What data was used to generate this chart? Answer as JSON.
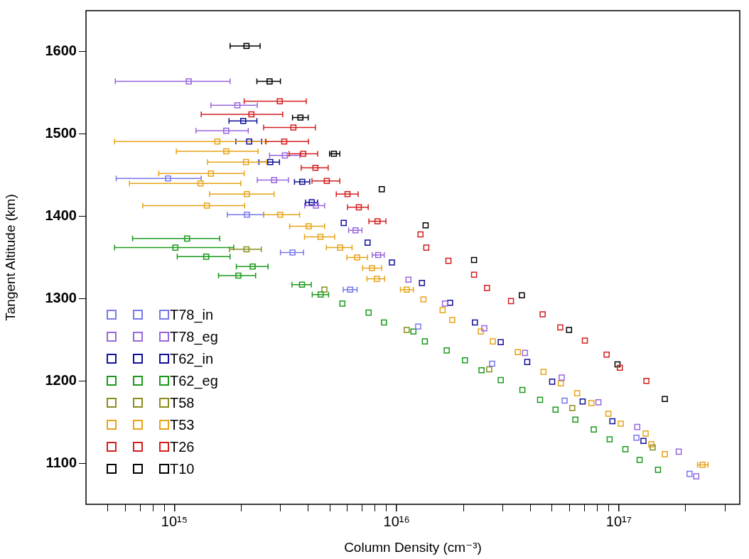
{
  "chart_data": {
    "type": "scatter",
    "xlabel": "Column Density (cm⁻³)",
    "ylabel": "Tangent Altitude (km)",
    "log": "x",
    "grid": false,
    "legend": "bottom left",
    "marker": "square",
    "xlim": [
      400000000000000.0,
      3.5e+17
    ],
    "ylim": [
      1050,
      1650
    ],
    "xticks": [
      {
        "value": 500000000000000.0,
        "label": null
      },
      {
        "value": 600000000000000.0,
        "label": null
      },
      {
        "value": 700000000000000.0,
        "label": null
      },
      {
        "value": 800000000000000.0,
        "label": null
      },
      {
        "value": 900000000000000.0,
        "label": null
      },
      {
        "value": 1000000000000000.0,
        "label": "10¹⁵"
      },
      {
        "value": 2000000000000000.0,
        "label": null
      },
      {
        "value": 3000000000000000.0,
        "label": null
      },
      {
        "value": 4000000000000000.0,
        "label": null
      },
      {
        "value": 5000000000000000.0,
        "label": null
      },
      {
        "value": 6000000000000000.0,
        "label": null
      },
      {
        "value": 7000000000000000.0,
        "label": null
      },
      {
        "value": 8000000000000000.0,
        "label": null
      },
      {
        "value": 9000000000000000.0,
        "label": null
      },
      {
        "value": 1e+16,
        "label": "10¹⁶"
      },
      {
        "value": 2e+16,
        "label": null
      },
      {
        "value": 3e+16,
        "label": null
      },
      {
        "value": 4e+16,
        "label": null
      },
      {
        "value": 5e+16,
        "label": null
      },
      {
        "value": 6e+16,
        "label": null
      },
      {
        "value": 7e+16,
        "label": null
      },
      {
        "value": 8e+16,
        "label": null
      },
      {
        "value": 9e+16,
        "label": null
      },
      {
        "value": 1e+17,
        "label": "10¹⁷"
      },
      {
        "value": 2e+17,
        "label": null
      },
      {
        "value": 3e+17,
        "label": null
      }
    ],
    "yticks": [
      1100,
      1200,
      1300,
      1400,
      1500,
      1600
    ],
    "series": [
      {
        "name": "T78_in",
        "color": "#7878f0",
        "x": [
          936000000000000.0,
          2120000000000000.0,
          3400000000000000.0,
          6180000000000000.0,
          1.25e+16,
          2.69e+16,
          5.7e+16,
          1.2e+17,
          2.08e+17
        ],
        "values": [
          1446,
          1402,
          1356,
          1311,
          1266,
          1221,
          1176,
          1131,
          1087
        ],
        "xerrors": [
          [
            547000000000000.0,
            1320000000000000.0
          ],
          [
            1730000000000000.0,
            2520000000000000.0
          ],
          [
            3000000000000000.0,
            3810000000000000.0
          ],
          [
            5750000000000000.0,
            6640000000000000.0
          ],
          null,
          null,
          null,
          null,
          null
        ]
      },
      {
        "name": "T78_eg",
        "color": "#9966dd",
        "x": [
          1160000000000000.0,
          1920000000000000.0,
          1710000000000000.0,
          3140000000000000.0,
          2810000000000000.0,
          4330000000000000.0,
          6530000000000000.0,
          8260000000000000.0,
          1.13e+16,
          1.65e+16,
          2.48e+16,
          3.78e+16,
          5.53e+16,
          8.09e+16,
          1.21e+17,
          1.86e+17,
          2.23e+17
        ],
        "values": [
          1564,
          1535,
          1504,
          1474,
          1444,
          1413,
          1383,
          1353,
          1323,
          1294,
          1264,
          1234,
          1204,
          1174,
          1144,
          1114,
          1084
        ],
        "xerrors": [
          [
            542000000000000.0,
            1780000000000000.0
          ],
          [
            1460000000000000.0,
            2360000000000000.0
          ],
          [
            1250000000000000.0,
            2150000000000000.0
          ],
          [
            2680000000000000.0,
            3670000000000000.0
          ],
          [
            2360000000000000.0,
            3260000000000000.0
          ],
          [
            3860000000000000.0,
            4740000000000000.0
          ],
          [
            6080000000000000.0,
            6980000000000000.0
          ],
          [
            7760000000000000.0,
            8790000000000000.0
          ],
          null,
          null,
          null,
          null,
          null,
          null,
          null,
          null,
          null
        ]
      },
      {
        "name": "T62_in",
        "color": "#10109a",
        "x": [
          2040000000000000.0,
          2170000000000000.0,
          2700000000000000.0,
          3760000000000000.0,
          4150000000000000.0,
          5780000000000000.0,
          7400000000000000.0,
          9520000000000000.0,
          1.3e+16,
          1.74e+16,
          2.25e+16,
          2.94e+16,
          3.87e+16,
          5.01e+16,
          6.87e+16,
          9.35e+16,
          1.29e+17
        ],
        "values": [
          1516,
          1491,
          1466,
          1442,
          1417,
          1392,
          1368,
          1344,
          1319,
          1295,
          1271,
          1247,
          1223,
          1199,
          1175,
          1151,
          1127
        ],
        "xerrors": [
          [
            1760000000000000.0,
            2350000000000000.0
          ],
          [
            1890000000000000.0,
            2470000000000000.0
          ],
          [
            2400000000000000.0,
            2970000000000000.0
          ],
          [
            3470000000000000.0,
            4060000000000000.0
          ],
          [
            3890000000000000.0,
            4410000000000000.0
          ],
          null,
          null,
          null,
          null,
          null,
          null,
          null,
          null,
          null,
          null,
          null,
          null
        ]
      },
      {
        "name": "T62_eg",
        "color": "#1a9a1a",
        "x": [
          1140000000000000.0,
          1010000000000000.0,
          1390000000000000.0,
          2250000000000000.0,
          1940000000000000.0,
          3750000000000000.0,
          4550000000000000.0,
          5700000000000000.0,
          7480000000000000.0,
          8770000000000000.0,
          1.19e+16,
          1.34e+16,
          1.68e+16,
          2.03e+16,
          2.41e+16,
          2.94e+16,
          3.68e+16,
          4.42e+16,
          5.19e+16,
          6.37e+16,
          7.71e+16,
          9.09e+16,
          1.07e+17,
          1.24e+17,
          1.5e+17
        ],
        "values": [
          1373,
          1362,
          1351,
          1339,
          1328,
          1317,
          1305,
          1294,
          1283,
          1271,
          1260,
          1248,
          1237,
          1225,
          1213,
          1201,
          1189,
          1177,
          1165,
          1153,
          1141,
          1129,
          1117,
          1104,
          1092
        ],
        "xerrors": [
          [
            648000000000000.0,
            1600000000000000.0
          ],
          [
            538000000000000.0,
            1850000000000000.0
          ],
          [
            1030000000000000.0,
            1780000000000000.0
          ],
          [
            1900000000000000.0,
            2640000000000000.0
          ],
          [
            1580000000000000.0,
            2320000000000000.0
          ],
          [
            3380000000000000.0,
            4130000000000000.0
          ],
          [
            4170000000000000.0,
            4940000000000000.0
          ],
          null,
          null,
          null,
          null,
          null,
          null,
          null,
          null,
          null,
          null,
          null,
          null,
          null,
          null,
          null,
          null,
          null,
          null
        ]
      },
      {
        "name": "T58",
        "color": "#8c8c1e",
        "x": [
          2110000000000000.0,
          4730000000000000.0,
          1.11e+16,
          2.61e+16,
          6.17e+16,
          1.42e+17
        ],
        "values": [
          1360,
          1311,
          1262,
          1214,
          1167,
          1119
        ],
        "xerrors": [
          [
            1770000000000000.0,
            2460000000000000.0
          ],
          null,
          null,
          null,
          null,
          null
        ]
      },
      {
        "name": "T53",
        "color": "#e8a317",
        "x": [
          1560000000000000.0,
          1710000000000000.0,
          2100000000000000.0,
          1460000000000000.0,
          1310000000000000.0,
          2120000000000000.0,
          1400000000000000.0,
          2990000000000000.0,
          4020000000000000.0,
          4540000000000000.0,
          5570000000000000.0,
          6640000000000000.0,
          7750000000000000.0,
          8150000000000000.0,
          1.11e+16,
          1.32e+16,
          1.61e+16,
          1.78e+16,
          2.39e+16,
          2.71e+16,
          3.51e+16,
          4.58e+16,
          5.48e+16,
          6.49e+16,
          7.52e+16,
          8.97e+16,
          1.02e+17,
          1.32e+17,
          1.4e+17,
          1.61e+17,
          2.38e+17
        ],
        "values": [
          1491,
          1479,
          1466,
          1452,
          1440,
          1427,
          1413,
          1402,
          1388,
          1375,
          1362,
          1350,
          1337,
          1324,
          1311,
          1299,
          1286,
          1274,
          1260,
          1248,
          1235,
          1211,
          1197,
          1185,
          1173,
          1160,
          1148,
          1136,
          1123,
          1111,
          1098
        ],
        "xerrors": [
          [
            538000000000000.0,
            2590000000000000.0
          ],
          [
            1020000000000000.0,
            2380000000000000.0
          ],
          [
            1410000000000000.0,
            2600000000000000.0
          ],
          [
            850000000000000.0,
            2060000000000000.0
          ],
          [
            628000000000000.0,
            1990000000000000.0
          ],
          [
            1440000000000000.0,
            2810000000000000.0
          ],
          [
            720000000000000.0,
            2070000000000000.0
          ],
          [
            2520000000000000.0,
            3660000000000000.0
          ],
          [
            3300000000000000.0,
            4740000000000000.0
          ],
          [
            3850000000000000.0,
            5260000000000000.0
          ],
          [
            4830000000000000.0,
            6300000000000000.0
          ],
          [
            5970000000000000.0,
            7400000000000000.0
          ],
          [
            7030000000000000.0,
            8570000000000000.0
          ],
          [
            7350000000000000.0,
            8830000000000000.0
          ],
          [
            1.04e+16,
            1.19e+16
          ],
          null,
          null,
          null,
          null,
          null,
          null,
          null,
          null,
          null,
          null,
          null,
          null,
          null,
          null,
          null,
          [
            2.26e+17,
            2.52e+17
          ]
        ]
      },
      {
        "name": "T26",
        "color": "#d41e1e",
        "x": [
          2980000000000000.0,
          2220000000000000.0,
          3430000000000000.0,
          3120000000000000.0,
          3800000000000000.0,
          4310000000000000.0,
          4850000000000000.0,
          6010000000000000.0,
          6760000000000000.0,
          8200000000000000.0,
          1.28e+16,
          1.36e+16,
          1.71e+16,
          2.23e+16,
          2.55e+16,
          3.27e+16,
          4.54e+16,
          5.45e+16,
          7.03e+16,
          8.81e+16,
          1.01e+17,
          1.33e+17
        ],
        "values": [
          1540,
          1524,
          1508,
          1491,
          1476,
          1459,
          1443,
          1427,
          1411,
          1394,
          1378,
          1362,
          1346,
          1329,
          1313,
          1297,
          1281,
          1265,
          1249,
          1232,
          1216,
          1200
        ],
        "xerrors": [
          [
            2060000000000000.0,
            3920000000000000.0
          ],
          [
            1320000000000000.0,
            3070000000000000.0
          ],
          [
            2520000000000000.0,
            4310000000000000.0
          ],
          [
            2570000000000000.0,
            4010000000000000.0
          ],
          [
            3280000000000000.0,
            4410000000000000.0
          ],
          [
            3720000000000000.0,
            4920000000000000.0
          ],
          [
            4160000000000000.0,
            5550000000000000.0
          ],
          [
            5350000000000000.0,
            6710000000000000.0
          ],
          [
            6010000000000000.0,
            7450000000000000.0
          ],
          [
            7500000000000000.0,
            8950000000000000.0
          ],
          null,
          null,
          null,
          null,
          null,
          null,
          null,
          null,
          null,
          null,
          null,
          null
        ]
      },
      {
        "name": "T10",
        "color": "#000000",
        "x": [
          2110000000000000.0,
          2680000000000000.0,
          3690000000000000.0,
          5220000000000000.0,
          8570000000000000.0,
          1.35e+16,
          2.23e+16,
          3.66e+16,
          5.97e+16,
          9.86e+16,
          1.61e+17
        ],
        "values": [
          1607,
          1564,
          1520,
          1476,
          1433,
          1389,
          1347,
          1304,
          1262,
          1220,
          1178
        ],
        "xerrors": [
          [
            1780000000000000.0,
            2430000000000000.0
          ],
          [
            2350000000000000.0,
            3000000000000000.0
          ],
          [
            3400000000000000.0,
            4000000000000000.0
          ],
          [
            4990000000000000.0,
            5550000000000000.0
          ],
          null,
          null,
          null,
          null,
          null,
          null,
          null
        ]
      }
    ]
  }
}
